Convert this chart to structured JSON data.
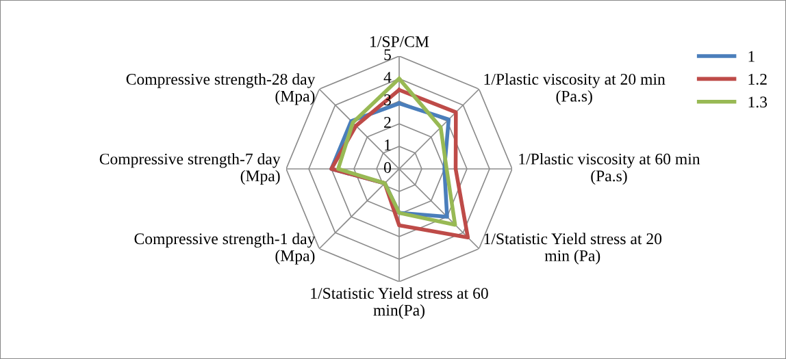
{
  "chart_data": {
    "type": "radar",
    "categories": [
      "1/SP/CM",
      "1/Plastic viscosity at 20 min (Pa.s)",
      "1/Plastic viscosity at 60 min (Pa.s)",
      "1/Statistic Yield stress at 20 min (Pa)",
      "1/Statistic Yield stress at 60 min(Pa)",
      "Compressive strength-1 day (Mpa)",
      "Compressive strength-7 day (Mpa)",
      "Compressive strength-28 day (Mpa)"
    ],
    "series": [
      {
        "name": "1",
        "color": "#4a7ebb",
        "values": [
          2.9,
          3.1,
          2.0,
          3.0,
          1.95,
          0.9,
          3.0,
          3.0
        ]
      },
      {
        "name": "1.2",
        "color": "#be4b48",
        "values": [
          3.5,
          3.55,
          2.5,
          4.3,
          2.5,
          0.9,
          3.0,
          2.7
        ]
      },
      {
        "name": "1.3",
        "color": "#98b954",
        "values": [
          4.0,
          2.6,
          2.1,
          3.5,
          1.95,
          0.9,
          2.7,
          2.9
        ]
      }
    ],
    "ylim": [
      0,
      5
    ],
    "yticks": [
      0,
      1,
      2,
      3,
      4,
      5
    ],
    "grid": true,
    "legend": "top right",
    "marker": "none",
    "line_style": "solid"
  }
}
